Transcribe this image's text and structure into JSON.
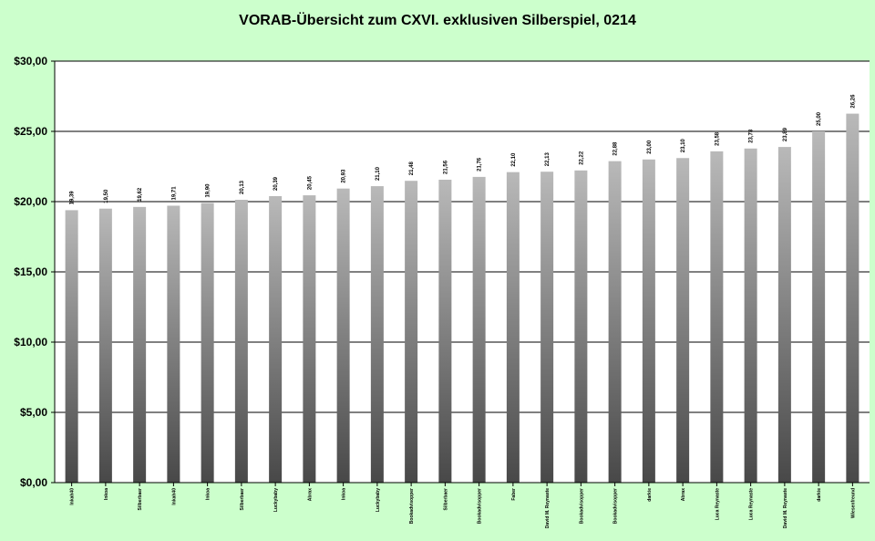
{
  "chart_data": {
    "type": "bar",
    "title": "VORAB-Übersicht zum CXVI. exklusiven Silberspiel, 0214",
    "categories": [
      "Inkah40",
      "Inkoa",
      "Silberbaer",
      "Inkah40",
      "Inkoa",
      "Silberbaer",
      "Luckybaby",
      "Abrax",
      "Inkoa",
      "Luckybaby",
      "Bookadvisopper",
      "Silberbaer",
      "Bookadvisopper",
      "Faber",
      "David M. Reynaste",
      "Bookadvisopper",
      "Bookadvisopper",
      "darkie",
      "Abrax",
      "Luca Reynaste",
      "Luca Reynaste",
      "David M. Reynaste",
      "darkie",
      "Wiesenfreund"
    ],
    "values": [
      19.39,
      19.5,
      19.62,
      19.71,
      19.9,
      20.13,
      20.39,
      20.45,
      20.93,
      21.1,
      21.48,
      21.56,
      21.76,
      22.1,
      22.13,
      22.22,
      22.88,
      23.0,
      23.1,
      23.58,
      23.78,
      23.89,
      25.0,
      26.26
    ],
    "data_labels": [
      "19,39",
      "19,50",
      "19,62",
      "19,71",
      "19,90",
      "20,13",
      "20,39",
      "20,45",
      "20,93",
      "21,10",
      "21,48",
      "21,56",
      "21,76",
      "22,10",
      "22,13",
      "22,22",
      "22,88",
      "23,00",
      "23,10",
      "23,58",
      "23,78",
      "23,89",
      "25,00",
      "26,26"
    ],
    "ylim": [
      0,
      30
    ],
    "yticks": [
      0,
      5,
      10,
      15,
      20,
      25,
      30
    ],
    "ytick_labels": [
      "$0,00",
      "$5,00",
      "$10,00",
      "$15,00",
      "$20,00",
      "$25,00",
      "$30,00"
    ],
    "xlabel": "",
    "ylabel": "",
    "grid": true,
    "colors": {
      "background": "#ccffcc",
      "plot_area": "#ffffff",
      "bar_light": "#b4b4b4",
      "bar_dark": "#4a4a4a",
      "grid": "#000000"
    }
  }
}
